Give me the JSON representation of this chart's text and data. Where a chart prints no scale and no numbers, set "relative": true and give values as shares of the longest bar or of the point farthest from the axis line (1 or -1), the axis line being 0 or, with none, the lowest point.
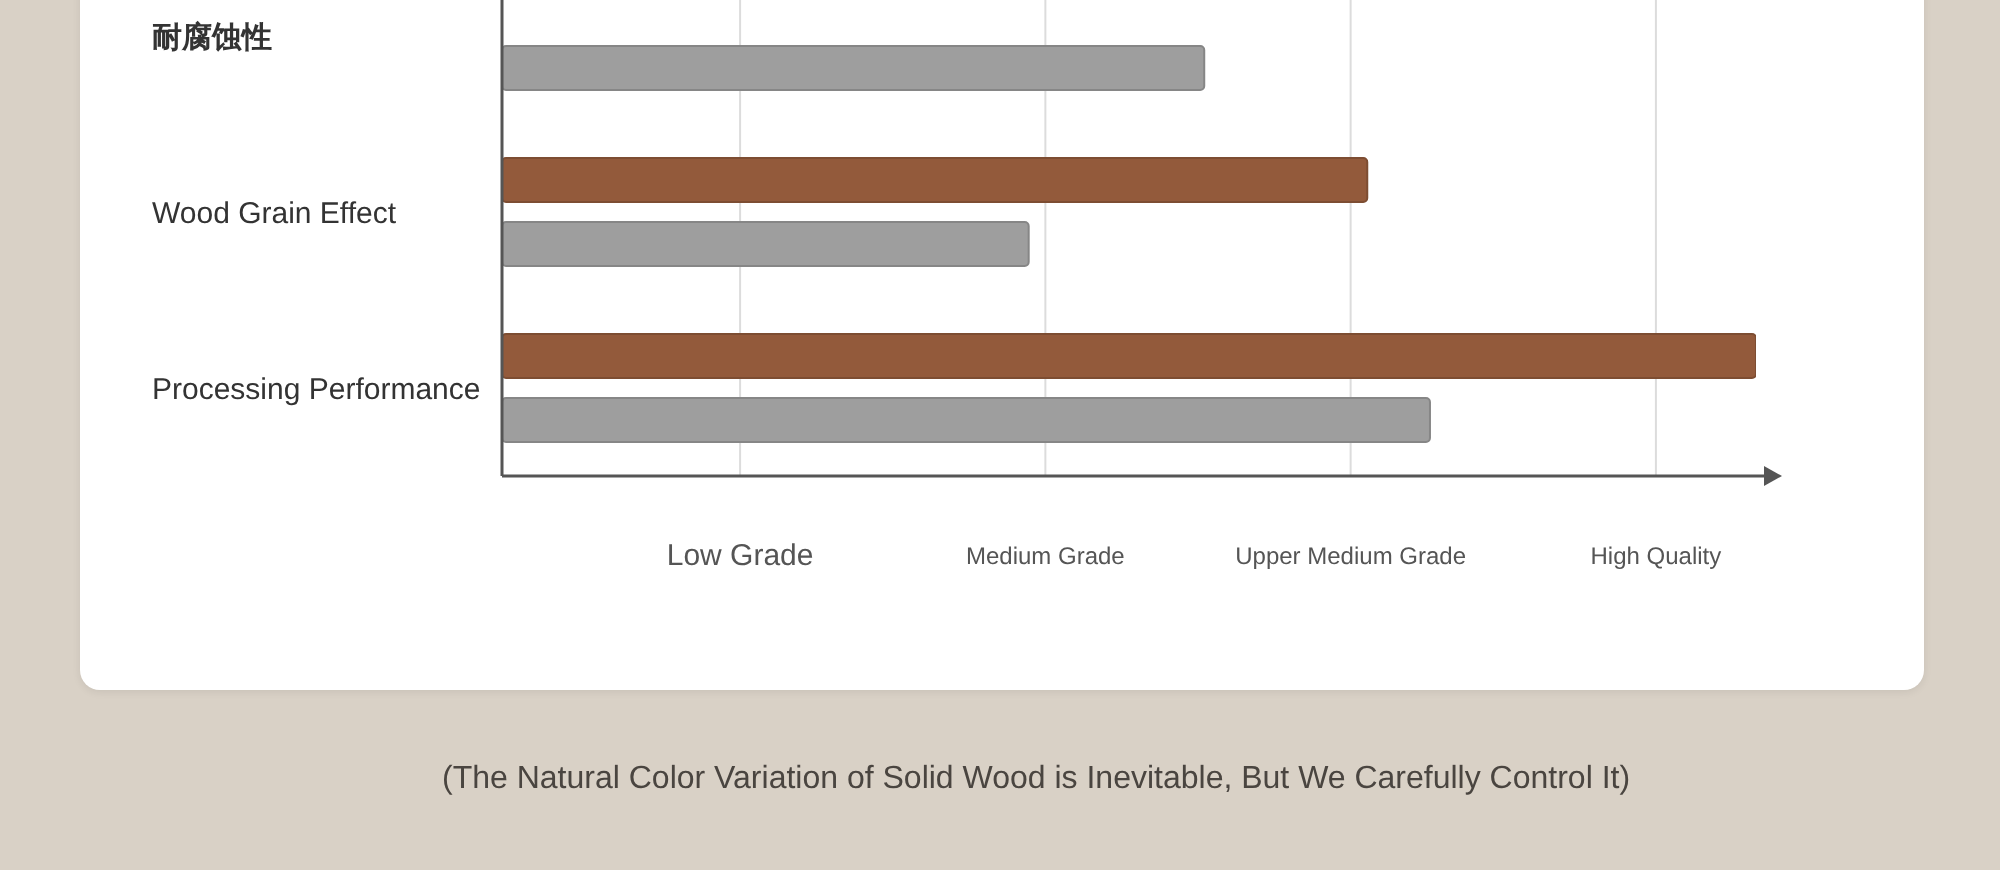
{
  "chart_data": {
    "type": "bar",
    "orientation": "horizontal",
    "relative": true,
    "categories": [
      "耐腐蚀性",
      "Wood Grain Effect",
      "Processing Performance"
    ],
    "series": [
      {
        "color": "#935a3b",
        "values": [
          null,
          0.69,
          1
        ]
      },
      {
        "color": "#9e9e9e",
        "values": [
          0.56,
          0.42,
          0.74
        ]
      }
    ],
    "grid": "x",
    "annotations": [
      "Low Grade",
      "Medium Grade",
      "Upper Medium Grade",
      "High Quality",
      "(The Natural Color Variation of Solid Wood is Inevitable, But We Carefully Control It)"
    ]
  }
}
